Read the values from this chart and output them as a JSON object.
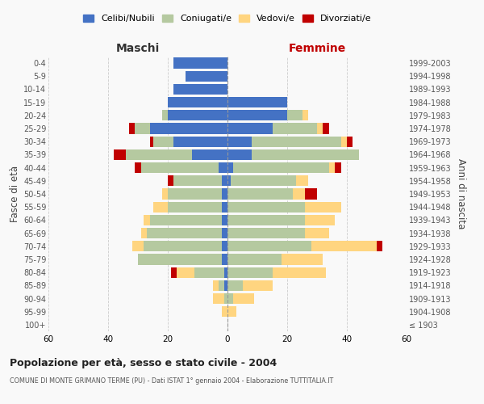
{
  "age_groups": [
    "100+",
    "95-99",
    "90-94",
    "85-89",
    "80-84",
    "75-79",
    "70-74",
    "65-69",
    "60-64",
    "55-59",
    "50-54",
    "45-49",
    "40-44",
    "35-39",
    "30-34",
    "25-29",
    "20-24",
    "15-19",
    "10-14",
    "5-9",
    "0-4"
  ],
  "birth_years": [
    "≤ 1903",
    "1904-1908",
    "1909-1913",
    "1914-1918",
    "1919-1923",
    "1924-1928",
    "1929-1933",
    "1934-1938",
    "1939-1943",
    "1944-1948",
    "1949-1953",
    "1954-1958",
    "1959-1963",
    "1964-1968",
    "1969-1973",
    "1974-1978",
    "1979-1983",
    "1984-1988",
    "1989-1993",
    "1994-1998",
    "1999-2003"
  ],
  "colors": {
    "celibi": "#4472C4",
    "coniugati": "#b5c9a0",
    "vedovi": "#FFD580",
    "divorziati": "#C00000"
  },
  "maschi": {
    "celibi": [
      0,
      0,
      0,
      1,
      1,
      2,
      2,
      2,
      2,
      2,
      2,
      2,
      3,
      12,
      18,
      26,
      20,
      20,
      18,
      14,
      18
    ],
    "coniugati": [
      0,
      0,
      1,
      2,
      10,
      28,
      26,
      25,
      24,
      18,
      18,
      16,
      26,
      22,
      7,
      5,
      2,
      0,
      0,
      0,
      0
    ],
    "vedovi": [
      0,
      2,
      4,
      2,
      6,
      0,
      4,
      2,
      2,
      5,
      2,
      0,
      0,
      0,
      0,
      0,
      0,
      0,
      0,
      0,
      0
    ],
    "divorziati": [
      0,
      0,
      0,
      0,
      2,
      0,
      0,
      0,
      0,
      0,
      0,
      2,
      2,
      4,
      1,
      2,
      0,
      0,
      0,
      0,
      0
    ]
  },
  "femmine": {
    "celibi": [
      0,
      0,
      0,
      0,
      0,
      0,
      0,
      0,
      0,
      0,
      0,
      1,
      2,
      8,
      8,
      15,
      20,
      20,
      0,
      0,
      0
    ],
    "coniugati": [
      0,
      0,
      2,
      5,
      15,
      18,
      28,
      26,
      26,
      26,
      22,
      22,
      32,
      36,
      30,
      15,
      5,
      0,
      0,
      0,
      0
    ],
    "vedovi": [
      0,
      3,
      7,
      10,
      18,
      14,
      22,
      8,
      10,
      12,
      4,
      4,
      2,
      0,
      2,
      2,
      2,
      0,
      0,
      0,
      0
    ],
    "divorziati": [
      0,
      0,
      0,
      0,
      0,
      0,
      2,
      0,
      0,
      0,
      4,
      0,
      2,
      0,
      2,
      2,
      0,
      0,
      0,
      0,
      0
    ]
  },
  "xlim": 60,
  "title": "Popolazione per età, sesso e stato civile - 2004",
  "subtitle": "COMUNE DI MONTE GRIMANO TERME (PU) - Dati ISTAT 1° gennaio 2004 - Elaborazione TUTTITALIA.IT",
  "ylabel_left": "Fasce di età",
  "ylabel_right": "Anni di nascita",
  "xlabel_left": "Maschi",
  "xlabel_right": "Femmine",
  "legend_labels": [
    "Celibi/Nubili",
    "Coniugati/e",
    "Vedovi/e",
    "Divorziati/e"
  ],
  "bg_color": "#f9f9f9"
}
